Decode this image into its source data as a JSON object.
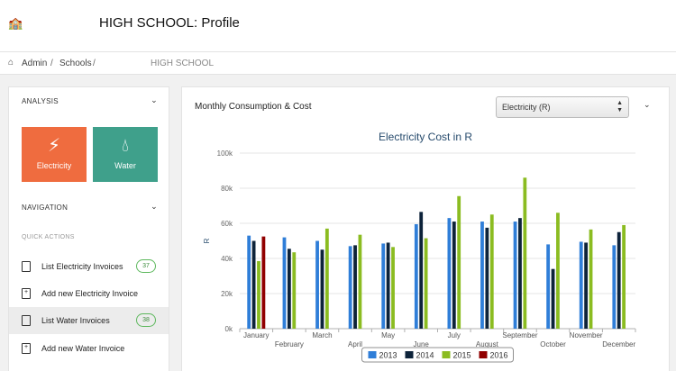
{
  "header": {
    "logo_glyph": "🏫",
    "title": "HIGH SCHOOL: Profile"
  },
  "breadcrumb": {
    "items": [
      "Admin",
      "Schools"
    ],
    "separator": "/",
    "current": "HIGH SCHOOL"
  },
  "sidebar": {
    "analysis_label": "ANALYSIS",
    "tiles": [
      {
        "label": "Electricity",
        "icon": "bolt-icon",
        "color": "#ef6c3f"
      },
      {
        "label": "Water",
        "icon": "water-drop-icon",
        "color": "#3fa08b"
      }
    ],
    "navigation_label": "NAVIGATION",
    "quick_actions_label": "QUICK ACTIONS",
    "actions": [
      {
        "label": "List Electricity Invoices",
        "badge": "37"
      },
      {
        "label": "Add new Electricity Invoice"
      },
      {
        "label": "List Water Invoices",
        "badge": "38"
      },
      {
        "label": "Add new Water Invoice"
      }
    ]
  },
  "panel": {
    "title": "Monthly Consumption & Cost",
    "select_value": "Electricity (R)"
  },
  "chart_data": {
    "type": "bar",
    "title": "Electricity Cost in R",
    "ylabel": "R",
    "ylim": [
      0,
      100000
    ],
    "yticks": [
      "0k",
      "20k",
      "40k",
      "60k",
      "80k",
      "100k"
    ],
    "categories": [
      "January",
      "February",
      "March",
      "April",
      "May",
      "June",
      "July",
      "August",
      "September",
      "October",
      "November",
      "December"
    ],
    "series": [
      {
        "name": "2013",
        "color": "#2f7ed8",
        "values": [
          53000,
          52000,
          50000,
          47000,
          48500,
          59500,
          63000,
          61000,
          61000,
          48000,
          49500,
          47500
        ]
      },
      {
        "name": "2014",
        "color": "#0d233a",
        "values": [
          50000,
          45500,
          45000,
          47500,
          49000,
          66500,
          61000,
          57500,
          63000,
          34000,
          49000,
          55000
        ]
      },
      {
        "name": "2015",
        "color": "#8bbc21",
        "values": [
          38500,
          43500,
          57000,
          53500,
          46500,
          51500,
          75500,
          65000,
          86000,
          66000,
          56500,
          59000
        ]
      },
      {
        "name": "2016",
        "color": "#910000",
        "values": [
          52500,
          null,
          null,
          null,
          null,
          null,
          null,
          null,
          null,
          null,
          null,
          null
        ]
      }
    ]
  }
}
